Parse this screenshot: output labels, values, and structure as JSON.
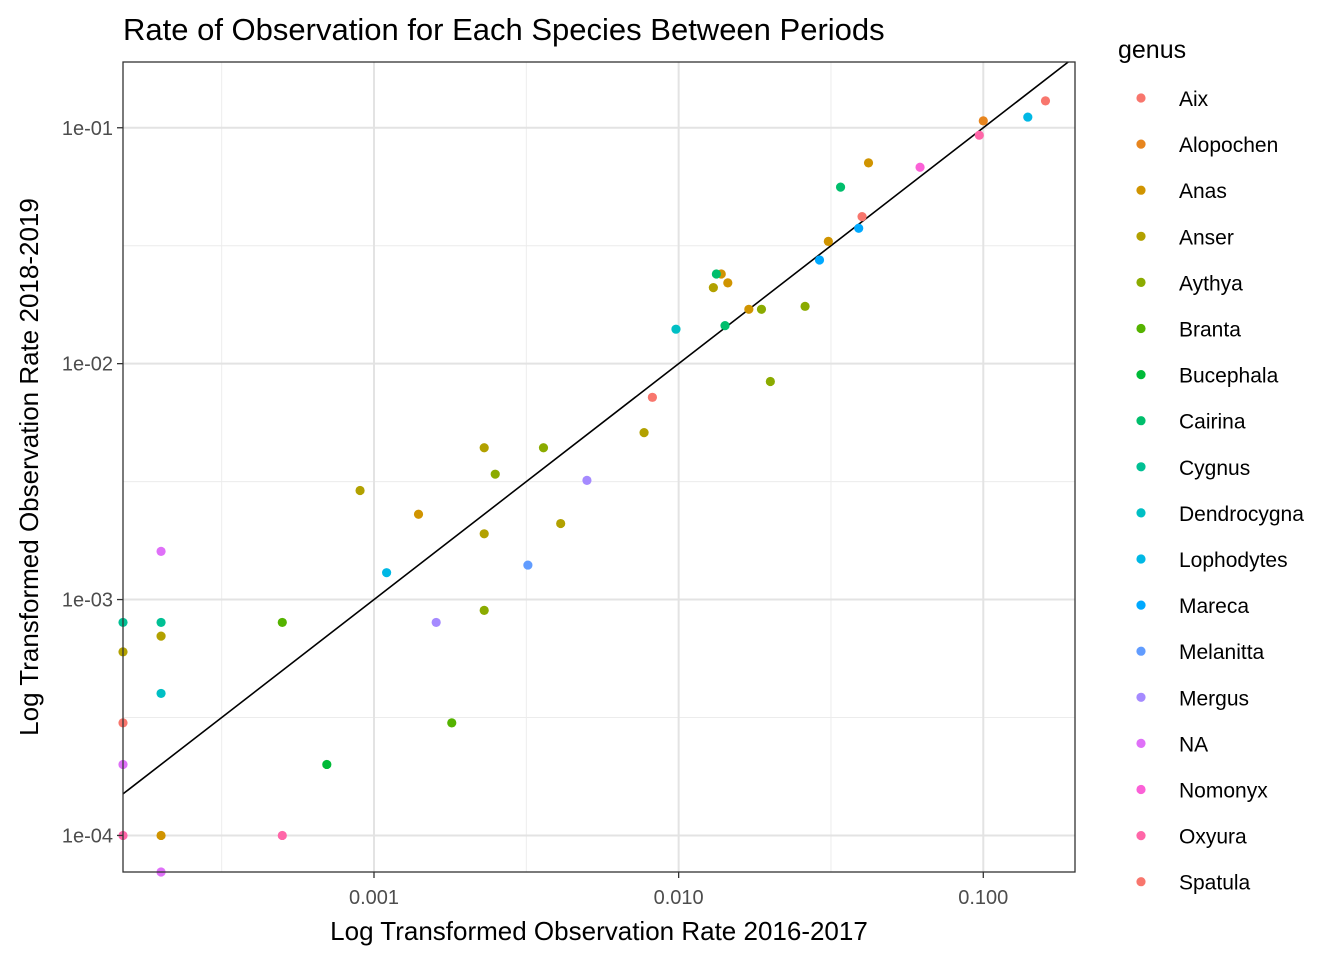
{
  "chart_data": {
    "type": "scatter",
    "title": "Rate of Observation for Each Species Between Periods",
    "xlabel": "Log Transformed Observation Rate 2016-2017",
    "ylabel": "Log Transformed Observation Rate 2018-2019",
    "xscale": "log10",
    "yscale": "log10",
    "xlim": [
      0.00015,
      0.2
    ],
    "ylim": [
      7e-05,
      0.19
    ],
    "x_ticks": [
      {
        "value": 0.001,
        "label": "0.001"
      },
      {
        "value": 0.01,
        "label": "0.010"
      },
      {
        "value": 0.1,
        "label": "0.100"
      }
    ],
    "y_ticks": [
      {
        "value": 0.0001,
        "label": "1e-04"
      },
      {
        "value": 0.001,
        "label": "1e-03"
      },
      {
        "value": 0.01,
        "label": "1e-02"
      },
      {
        "value": 0.1,
        "label": "1e-01"
      }
    ],
    "reference_line": "y = x",
    "grid": true,
    "legend": {
      "title": "genus",
      "position": "right"
    },
    "series": [
      {
        "name": "Aix",
        "color": "#F8766D",
        "points": [
          [
            0.00015,
            0.0003
          ],
          [
            0.0082,
            0.0072
          ]
        ]
      },
      {
        "name": "Alopochen",
        "color": "#E7851E",
        "points": [
          [
            0.1,
            0.107
          ]
        ]
      },
      {
        "name": "Anas",
        "color": "#D09400",
        "points": [
          [
            0.0014,
            0.0023
          ],
          [
            0.0138,
            0.024
          ],
          [
            0.0145,
            0.022
          ],
          [
            0.017,
            0.017
          ],
          [
            0.031,
            0.033
          ],
          [
            0.042,
            0.071
          ],
          [
            0.0002,
            0.0001
          ]
        ]
      },
      {
        "name": "Anser",
        "color": "#B2A100",
        "points": [
          [
            0.0009,
            0.0029
          ],
          [
            0.0023,
            0.0044
          ],
          [
            0.0023,
            0.0019
          ],
          [
            0.0041,
            0.0021
          ],
          [
            0.0077,
            0.0051
          ],
          [
            0.013,
            0.021
          ],
          [
            0.0002,
            0.0007
          ],
          [
            0.00015,
            0.0006
          ]
        ]
      },
      {
        "name": "Aythya",
        "color": "#8BAB00",
        "points": [
          [
            0.0025,
            0.0034
          ],
          [
            0.0036,
            0.0044
          ],
          [
            0.0023,
            0.0009
          ],
          [
            0.0187,
            0.017
          ],
          [
            0.02,
            0.0084
          ],
          [
            0.026,
            0.0175
          ]
        ]
      },
      {
        "name": "Branta",
        "color": "#55B300",
        "points": [
          [
            0.0005,
            0.0008
          ],
          [
            0.0018,
            0.0003
          ]
        ]
      },
      {
        "name": "Bucephala",
        "color": "#00BA38",
        "points": [
          [
            0.0007,
            0.0002
          ]
        ]
      },
      {
        "name": "Cairina",
        "color": "#00BE6C",
        "points": [
          [
            0.0133,
            0.024
          ],
          [
            0.0142,
            0.0145
          ],
          [
            0.034,
            0.056
          ]
        ]
      },
      {
        "name": "Cygnus",
        "color": "#00C094",
        "points": [
          [
            0.0002,
            0.0008
          ],
          [
            0.00015,
            0.0008
          ]
        ]
      },
      {
        "name": "Dendrocygna",
        "color": "#00BFC4",
        "points": [
          [
            0.0098,
            0.014
          ],
          [
            0.0002,
            0.0004
          ]
        ]
      },
      {
        "name": "Lophodytes",
        "color": "#00B8E5",
        "points": [
          [
            0.0011,
            0.0013
          ],
          [
            0.14,
            0.111
          ]
        ]
      },
      {
        "name": "Mareca",
        "color": "#00A9FF",
        "points": [
          [
            0.029,
            0.0275
          ],
          [
            0.039,
            0.0375
          ]
        ]
      },
      {
        "name": "Melanitta",
        "color": "#619CFF",
        "points": [
          [
            0.0032,
            0.0014
          ]
        ]
      },
      {
        "name": "Mergus",
        "color": "#A58AFF",
        "points": [
          [
            0.005,
            0.0032
          ],
          [
            0.0016,
            0.0008
          ]
        ]
      },
      {
        "name": "NA",
        "color": "#DF70F8",
        "points": [
          [
            0.0002,
            0.0016
          ],
          [
            0.00015,
            0.0002
          ],
          [
            0.0002,
            7e-05
          ]
        ]
      },
      {
        "name": "Nomonyx",
        "color": "#FB61D7",
        "points": [
          [
            0.062,
            0.068
          ]
        ]
      },
      {
        "name": "Oxyura",
        "color": "#FF66A8",
        "points": [
          [
            0.097,
            0.093
          ],
          [
            0.0005,
            0.0001
          ],
          [
            0.00015,
            0.0001
          ]
        ]
      },
      {
        "name": "Spatula",
        "color": "#F8766D",
        "points": [
          [
            0.16,
            0.13
          ],
          [
            0.04,
            0.042
          ]
        ]
      }
    ]
  }
}
